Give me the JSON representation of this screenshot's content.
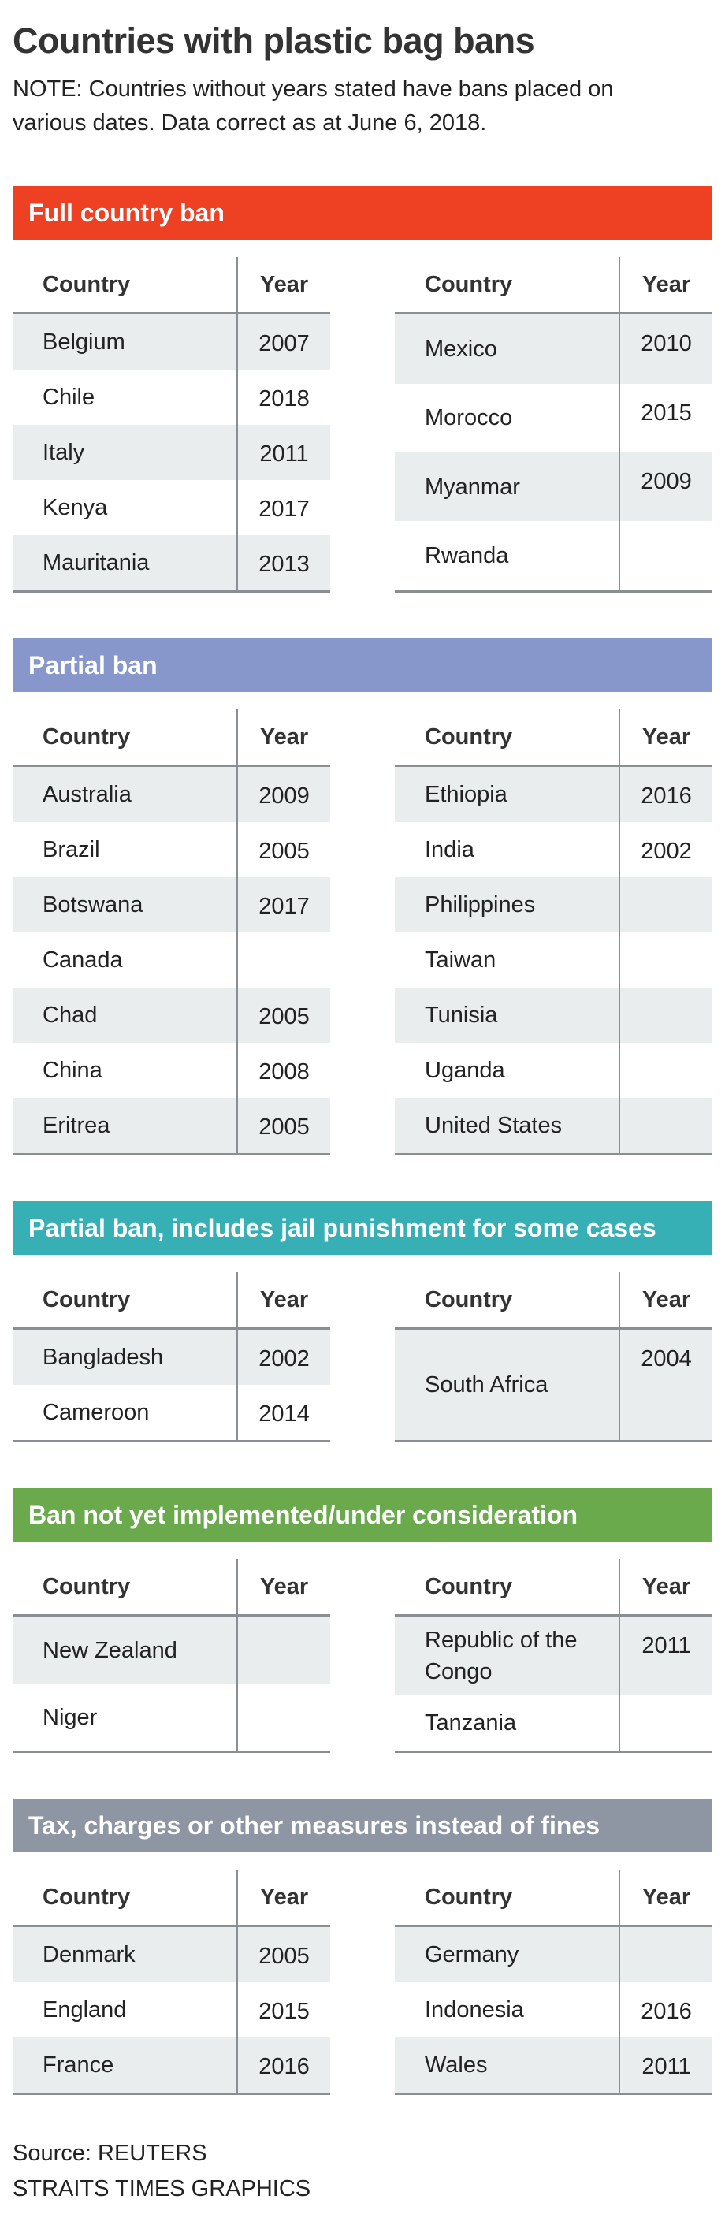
{
  "header": {
    "title": "Countries with plastic bag bans",
    "note": "NOTE: Countries without years stated have bans placed on various dates. Data correct as at June 6, 2018."
  },
  "columns": [
    "Country",
    "Year"
  ],
  "sections": [
    {
      "heading": "Full country ban",
      "color": "#ee4124",
      "left": [
        [
          "Belgium",
          2007
        ],
        [
          "Chile",
          2018
        ],
        [
          "Italy",
          2011
        ],
        [
          "Kenya",
          2017
        ],
        [
          "Mauritania",
          2013
        ]
      ],
      "right": [
        [
          "Mexico",
          2010
        ],
        [
          "Morocco",
          2015
        ],
        [
          "Myanmar",
          2009
        ],
        [
          "Rwanda",
          null
        ]
      ]
    },
    {
      "heading": "Partial ban",
      "color": "#8797cc",
      "left": [
        [
          "Australia",
          2009
        ],
        [
          "Brazil",
          2005
        ],
        [
          "Botswana",
          2017
        ],
        [
          "Canada",
          null
        ],
        [
          "Chad",
          2005
        ],
        [
          "China",
          2008
        ],
        [
          "Eritrea",
          2005
        ]
      ],
      "right": [
        [
          "Ethiopia",
          2016
        ],
        [
          "India",
          2002
        ],
        [
          "Philippines",
          null
        ],
        [
          "Taiwan",
          null
        ],
        [
          "Tunisia",
          null
        ],
        [
          "Uganda",
          null
        ],
        [
          "United States",
          null
        ]
      ]
    },
    {
      "heading": "Partial ban, includes jail punishment for some cases",
      "color": "#36b0b5",
      "left": [
        [
          "Bangladesh",
          2002
        ],
        [
          "Cameroon",
          2014
        ]
      ],
      "right": [
        [
          "South Africa",
          2004
        ]
      ]
    },
    {
      "heading": "Ban not yet implemented/under consideration",
      "color": "#6aaa4c",
      "left": [
        [
          "New Zealand",
          null
        ],
        [
          "Niger",
          null
        ]
      ],
      "right": [
        [
          "Republic of the Congo",
          2011
        ],
        [
          "Tanzania",
          null
        ]
      ]
    },
    {
      "heading": "Tax, charges or other measures instead of fines",
      "color": "#8e96a3",
      "left": [
        [
          "Denmark",
          2005
        ],
        [
          "England",
          2015
        ],
        [
          "France",
          2016
        ]
      ],
      "right": [
        [
          "Germany",
          null
        ],
        [
          "Indonesia",
          2016
        ],
        [
          "Wales",
          2011
        ]
      ]
    }
  ],
  "footer": {
    "source": "Source: REUTERS",
    "credit": "STRAITS TIMES GRAPHICS"
  }
}
